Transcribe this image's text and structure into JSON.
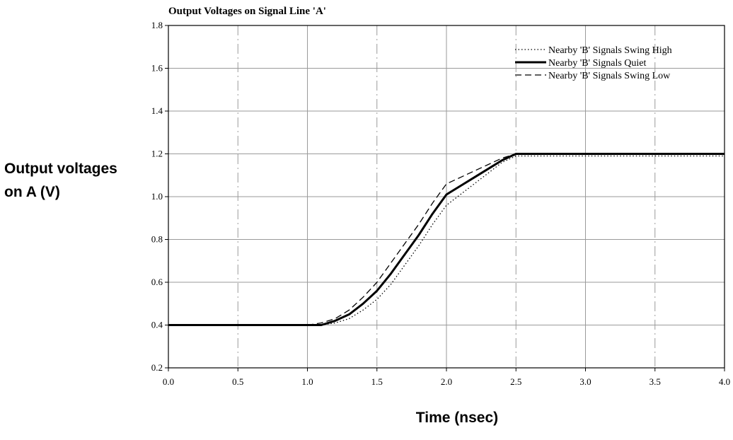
{
  "chart_data": {
    "type": "line",
    "title": "Output Voltages on Signal Line 'A'",
    "xlabel": "Time (nsec)",
    "ylabel_lines": [
      "Output voltages",
      "on A (V)"
    ],
    "xlim": [
      0,
      4
    ],
    "ylim": [
      0.2,
      1.8
    ],
    "x_ticks": [
      0,
      0.5,
      1,
      1.5,
      2,
      2.5,
      3,
      3.5,
      4
    ],
    "x_tick_labels": [
      "0.0",
      "0.5",
      "1.0",
      "1.5",
      "2.0",
      "2.5",
      "3.0",
      "3.5",
      "4.0"
    ],
    "y_ticks": [
      0.2,
      0.4,
      0.6,
      0.8,
      1.0,
      1.2,
      1.4,
      1.6,
      1.8
    ],
    "y_tick_labels": [
      "0.2",
      "0.4",
      "0.6",
      "0.8",
      "1.0",
      "1.2",
      "1.4",
      "1.6",
      "1.8"
    ],
    "grid": true,
    "legend_position": "top-right",
    "series": [
      {
        "name": "Nearby 'B' Signals Swing High",
        "style": "dotted",
        "x": [
          0.0,
          1.0,
          1.1,
          1.2,
          1.3,
          1.4,
          1.5,
          1.6,
          1.7,
          1.8,
          1.9,
          2.0,
          2.1,
          2.2,
          2.3,
          2.4,
          2.5,
          3.0,
          3.5,
          4.0
        ],
        "y": [
          0.4,
          0.4,
          0.4,
          0.41,
          0.43,
          0.47,
          0.52,
          0.59,
          0.68,
          0.77,
          0.87,
          0.96,
          1.01,
          1.06,
          1.11,
          1.16,
          1.19,
          1.19,
          1.19,
          1.19
        ]
      },
      {
        "name": "Nearby 'B' Signals Quiet",
        "style": "solid",
        "x": [
          0.0,
          1.0,
          1.1,
          1.2,
          1.3,
          1.4,
          1.5,
          1.6,
          1.7,
          1.8,
          1.9,
          2.0,
          2.1,
          2.2,
          2.3,
          2.4,
          2.5,
          3.0,
          3.5,
          4.0
        ],
        "y": [
          0.4,
          0.4,
          0.4,
          0.42,
          0.45,
          0.5,
          0.56,
          0.64,
          0.73,
          0.82,
          0.92,
          1.01,
          1.05,
          1.09,
          1.13,
          1.17,
          1.2,
          1.2,
          1.2,
          1.2
        ]
      },
      {
        "name": "Nearby 'B' Signals Swing Low",
        "style": "dashed",
        "x": [
          0.0,
          1.0,
          1.1,
          1.2,
          1.3,
          1.4,
          1.5,
          1.6,
          1.7,
          1.8,
          1.9,
          2.0,
          2.1,
          2.2,
          2.3,
          2.4,
          2.5,
          3.0,
          3.5,
          4.0
        ],
        "y": [
          0.4,
          0.4,
          0.41,
          0.43,
          0.47,
          0.53,
          0.6,
          0.69,
          0.78,
          0.87,
          0.97,
          1.06,
          1.09,
          1.12,
          1.15,
          1.18,
          1.2,
          1.2,
          1.2,
          1.2
        ]
      }
    ]
  }
}
